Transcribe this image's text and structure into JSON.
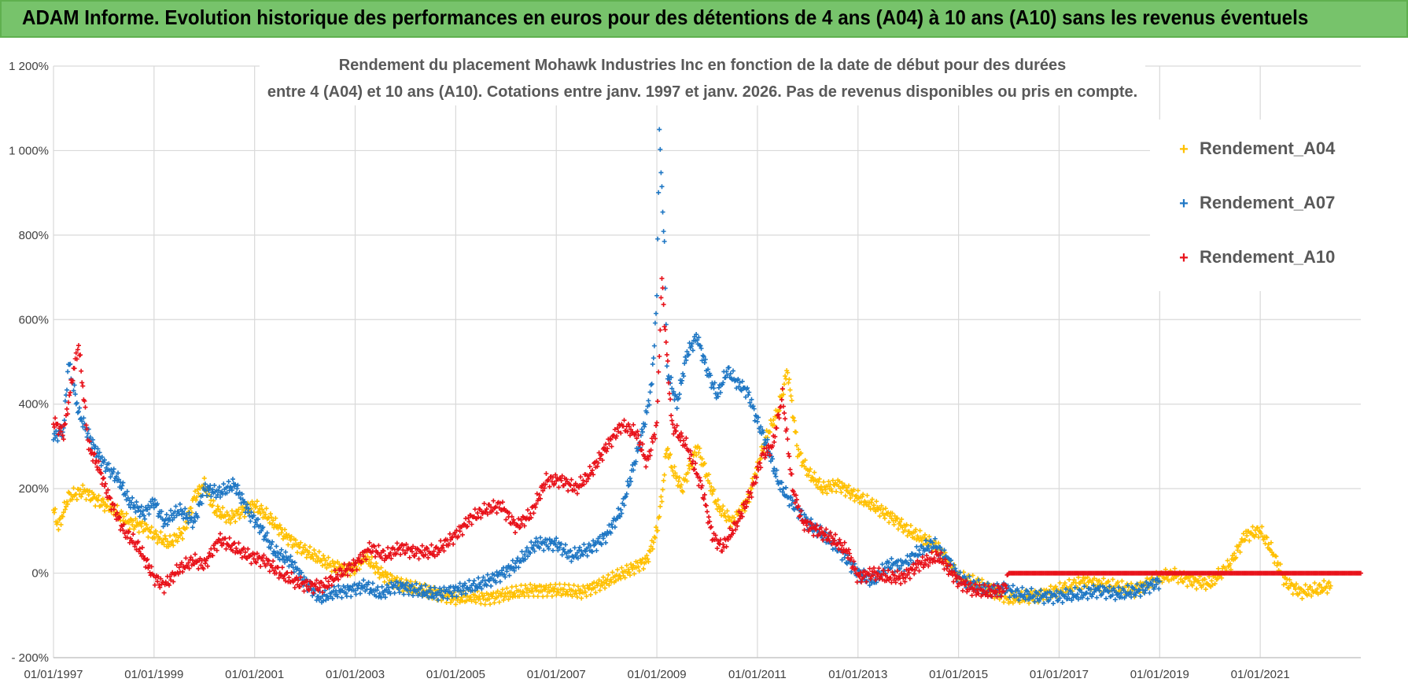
{
  "banner": {
    "text": "ADAM Informe. Evolution historique des performances en euros pour des détentions de 4 ans (A04) à 10 ans (A10) sans les revenus éventuels"
  },
  "chart_data": {
    "type": "scatter",
    "title_line1": "Rendement du placement Mohawk Industries Inc en fonction de la date de début pour des durées",
    "title_line2": "entre 4 (A04) et 10 ans (A10).  Cotations entre janv. 1997 et janv. 2026. Pas de revenus disponibles ou pris en compte.",
    "xlim": [
      1997.0,
      2023.0
    ],
    "ylim": [
      -200,
      1200
    ],
    "x_ticks": [
      {
        "x": 1997,
        "label": "01/01/1997"
      },
      {
        "x": 1999,
        "label": "01/01/1999"
      },
      {
        "x": 2001,
        "label": "01/01/2001"
      },
      {
        "x": 2003,
        "label": "01/01/2003"
      },
      {
        "x": 2005,
        "label": "01/01/2005"
      },
      {
        "x": 2007,
        "label": "01/01/2007"
      },
      {
        "x": 2009,
        "label": "01/01/2009"
      },
      {
        "x": 2011,
        "label": "01/01/2011"
      },
      {
        "x": 2013,
        "label": "01/01/2013"
      },
      {
        "x": 2015,
        "label": "01/01/2015"
      },
      {
        "x": 2017,
        "label": "01/01/2017"
      },
      {
        "x": 2019,
        "label": "01/01/2019"
      },
      {
        "x": 2021,
        "label": "01/01/2021"
      }
    ],
    "y_ticks": [
      {
        "y": 1200,
        "label": "1 200%"
      },
      {
        "y": 1000,
        "label": "1 000%"
      },
      {
        "y": 800,
        "label": "800%"
      },
      {
        "y": 600,
        "label": "600%"
      },
      {
        "y": 400,
        "label": "400%"
      },
      {
        "y": 200,
        "label": "200%"
      },
      {
        "y": 0,
        "label": "0%"
      },
      {
        "y": -200,
        "label": "- 200%"
      }
    ],
    "series": [
      {
        "name": "Rendement_A04",
        "color": "#ffc000",
        "points": [
          [
            1997.0,
            150
          ],
          [
            1997.1,
            110
          ],
          [
            1997.3,
            180
          ],
          [
            1997.6,
            195
          ],
          [
            1997.9,
            170
          ],
          [
            1998.2,
            150
          ],
          [
            1998.5,
            120
          ],
          [
            1998.8,
            110
          ],
          [
            1999.0,
            90
          ],
          [
            1999.3,
            70
          ],
          [
            1999.6,
            100
          ],
          [
            1999.8,
            180
          ],
          [
            2000.0,
            210
          ],
          [
            2000.2,
            150
          ],
          [
            2000.5,
            130
          ],
          [
            2000.8,
            150
          ],
          [
            2001.0,
            160
          ],
          [
            2001.3,
            130
          ],
          [
            2001.6,
            90
          ],
          [
            2001.9,
            60
          ],
          [
            2002.2,
            40
          ],
          [
            2002.5,
            20
          ],
          [
            2002.8,
            10
          ],
          [
            2003.0,
            10
          ],
          [
            2003.2,
            40
          ],
          [
            2003.5,
            0
          ],
          [
            2003.8,
            -20
          ],
          [
            2004.0,
            -30
          ],
          [
            2004.3,
            -40
          ],
          [
            2004.7,
            -50
          ],
          [
            2005.0,
            -60
          ],
          [
            2005.3,
            -55
          ],
          [
            2005.6,
            -60
          ],
          [
            2006.0,
            -50
          ],
          [
            2006.5,
            -40
          ],
          [
            2007.0,
            -40
          ],
          [
            2007.5,
            -45
          ],
          [
            2008.0,
            -20
          ],
          [
            2008.5,
            10
          ],
          [
            2008.8,
            30
          ],
          [
            2009.0,
            100
          ],
          [
            2009.1,
            180
          ],
          [
            2009.2,
            300
          ],
          [
            2009.3,
            250
          ],
          [
            2009.5,
            200
          ],
          [
            2009.8,
            300
          ],
          [
            2010.0,
            230
          ],
          [
            2010.2,
            160
          ],
          [
            2010.5,
            120
          ],
          [
            2010.8,
            170
          ],
          [
            2011.0,
            250
          ],
          [
            2011.2,
            330
          ],
          [
            2011.4,
            380
          ],
          [
            2011.6,
            480
          ],
          [
            2011.8,
            290
          ],
          [
            2012.0,
            240
          ],
          [
            2012.3,
            200
          ],
          [
            2012.6,
            210
          ],
          [
            2013.0,
            180
          ],
          [
            2013.3,
            160
          ],
          [
            2013.7,
            130
          ],
          [
            2014.0,
            100
          ],
          [
            2014.3,
            80
          ],
          [
            2014.6,
            60
          ],
          [
            2015.0,
            -10
          ],
          [
            2015.5,
            -30
          ],
          [
            2016.0,
            -60
          ],
          [
            2016.5,
            -55
          ],
          [
            2017.0,
            -40
          ],
          [
            2017.5,
            -20
          ],
          [
            2018.0,
            -30
          ],
          [
            2018.5,
            -40
          ],
          [
            2019.0,
            -10
          ],
          [
            2019.3,
            -5
          ],
          [
            2019.7,
            -20
          ],
          [
            2020.0,
            -25
          ],
          [
            2020.4,
            20
          ],
          [
            2020.7,
            90
          ],
          [
            2021.0,
            100
          ],
          [
            2021.2,
            60
          ],
          [
            2021.5,
            -20
          ],
          [
            2021.8,
            -45
          ],
          [
            2022.1,
            -40
          ],
          [
            2022.4,
            -30
          ]
        ]
      },
      {
        "name": "Rendement_A07",
        "color": "#1f77c4",
        "points": [
          [
            1997.0,
            320
          ],
          [
            1997.2,
            340
          ],
          [
            1997.3,
            500
          ],
          [
            1997.5,
            380
          ],
          [
            1997.8,
            300
          ],
          [
            1998.0,
            260
          ],
          [
            1998.3,
            220
          ],
          [
            1998.5,
            170
          ],
          [
            1998.8,
            140
          ],
          [
            1999.0,
            170
          ],
          [
            1999.2,
            120
          ],
          [
            1999.5,
            150
          ],
          [
            1999.8,
            120
          ],
          [
            2000.0,
            200
          ],
          [
            2000.3,
            190
          ],
          [
            2000.6,
            210
          ],
          [
            2000.9,
            140
          ],
          [
            2001.1,
            110
          ],
          [
            2001.4,
            50
          ],
          [
            2001.7,
            30
          ],
          [
            2002.0,
            -20
          ],
          [
            2002.3,
            -60
          ],
          [
            2002.6,
            -45
          ],
          [
            2002.9,
            -40
          ],
          [
            2003.2,
            -30
          ],
          [
            2003.5,
            -50
          ],
          [
            2003.8,
            -30
          ],
          [
            2004.2,
            -40
          ],
          [
            2004.6,
            -50
          ],
          [
            2005.0,
            -40
          ],
          [
            2005.4,
            -30
          ],
          [
            2005.8,
            -10
          ],
          [
            2006.2,
            20
          ],
          [
            2006.6,
            70
          ],
          [
            2007.0,
            70
          ],
          [
            2007.3,
            40
          ],
          [
            2007.7,
            60
          ],
          [
            2008.0,
            90
          ],
          [
            2008.3,
            150
          ],
          [
            2008.6,
            280
          ],
          [
            2008.8,
            380
          ],
          [
            2008.9,
            450
          ],
          [
            2009.0,
            650
          ],
          [
            2009.05,
            1050
          ],
          [
            2009.1,
            900
          ],
          [
            2009.15,
            780
          ],
          [
            2009.2,
            480
          ],
          [
            2009.4,
            400
          ],
          [
            2009.6,
            520
          ],
          [
            2009.8,
            560
          ],
          [
            2010.0,
            480
          ],
          [
            2010.2,
            420
          ],
          [
            2010.4,
            480
          ],
          [
            2010.6,
            450
          ],
          [
            2010.8,
            430
          ],
          [
            2011.0,
            360
          ],
          [
            2011.2,
            300
          ],
          [
            2011.4,
            220
          ],
          [
            2011.6,
            180
          ],
          [
            2011.8,
            150
          ],
          [
            2012.0,
            120
          ],
          [
            2012.3,
            90
          ],
          [
            2012.6,
            60
          ],
          [
            2013.0,
            0
          ],
          [
            2013.3,
            -20
          ],
          [
            2013.6,
            20
          ],
          [
            2013.9,
            20
          ],
          [
            2014.2,
            50
          ],
          [
            2014.5,
            70
          ],
          [
            2014.8,
            30
          ],
          [
            2015.0,
            -10
          ],
          [
            2015.3,
            -30
          ],
          [
            2015.6,
            -40
          ],
          [
            2015.9,
            -35
          ],
          [
            2016.2,
            -50
          ],
          [
            2016.6,
            -55
          ],
          [
            2017.0,
            -55
          ],
          [
            2017.4,
            -50
          ],
          [
            2017.8,
            -40
          ],
          [
            2018.2,
            -50
          ],
          [
            2018.6,
            -40
          ],
          [
            2019.0,
            -20
          ]
        ]
      },
      {
        "name": "Rendement_A10",
        "color": "#e8121a",
        "points": [
          [
            1997.0,
            360
          ],
          [
            1997.2,
            330
          ],
          [
            1997.4,
            480
          ],
          [
            1997.5,
            540
          ],
          [
            1997.7,
            300
          ],
          [
            1997.9,
            250
          ],
          [
            1998.1,
            180
          ],
          [
            1998.4,
            100
          ],
          [
            1998.7,
            60
          ],
          [
            1999.0,
            -10
          ],
          [
            1999.2,
            -30
          ],
          [
            1999.5,
            10
          ],
          [
            1999.8,
            30
          ],
          [
            2000.0,
            20
          ],
          [
            2000.3,
            80
          ],
          [
            2000.6,
            60
          ],
          [
            2000.9,
            40
          ],
          [
            2001.2,
            30
          ],
          [
            2001.5,
            0
          ],
          [
            2001.8,
            -20
          ],
          [
            2002.1,
            -30
          ],
          [
            2002.4,
            -30
          ],
          [
            2002.7,
            0
          ],
          [
            2003.0,
            20
          ],
          [
            2003.3,
            60
          ],
          [
            2003.6,
            40
          ],
          [
            2003.9,
            60
          ],
          [
            2004.2,
            50
          ],
          [
            2004.6,
            50
          ],
          [
            2005.0,
            90
          ],
          [
            2005.3,
            130
          ],
          [
            2005.6,
            150
          ],
          [
            2005.9,
            160
          ],
          [
            2006.2,
            110
          ],
          [
            2006.5,
            140
          ],
          [
            2006.8,
            220
          ],
          [
            2007.1,
            220
          ],
          [
            2007.4,
            200
          ],
          [
            2007.7,
            240
          ],
          [
            2008.0,
            300
          ],
          [
            2008.3,
            350
          ],
          [
            2008.6,
            330
          ],
          [
            2008.8,
            260
          ],
          [
            2009.0,
            350
          ],
          [
            2009.1,
            700
          ],
          [
            2009.15,
            600
          ],
          [
            2009.3,
            350
          ],
          [
            2009.6,
            300
          ],
          [
            2009.9,
            200
          ],
          [
            2010.1,
            90
          ],
          [
            2010.3,
            60
          ],
          [
            2010.6,
            120
          ],
          [
            2010.9,
            200
          ],
          [
            2011.1,
            280
          ],
          [
            2011.3,
            300
          ],
          [
            2011.5,
            420
          ],
          [
            2011.7,
            200
          ],
          [
            2011.9,
            120
          ],
          [
            2012.2,
            100
          ],
          [
            2012.5,
            80
          ],
          [
            2012.8,
            50
          ],
          [
            2013.0,
            -10
          ],
          [
            2013.3,
            0
          ],
          [
            2013.6,
            -10
          ],
          [
            2013.9,
            -10
          ],
          [
            2014.2,
            20
          ],
          [
            2014.6,
            40
          ],
          [
            2015.0,
            -20
          ],
          [
            2015.3,
            -40
          ],
          [
            2015.6,
            -45
          ],
          [
            2015.9,
            -40
          ],
          [
            2016.0,
            0
          ],
          [
            2023.0,
            0
          ]
        ]
      }
    ],
    "legend": {
      "position": "top-right",
      "labels": [
        "Rendement_A04",
        "Rendement_A07",
        "Rendement_A10"
      ]
    }
  }
}
